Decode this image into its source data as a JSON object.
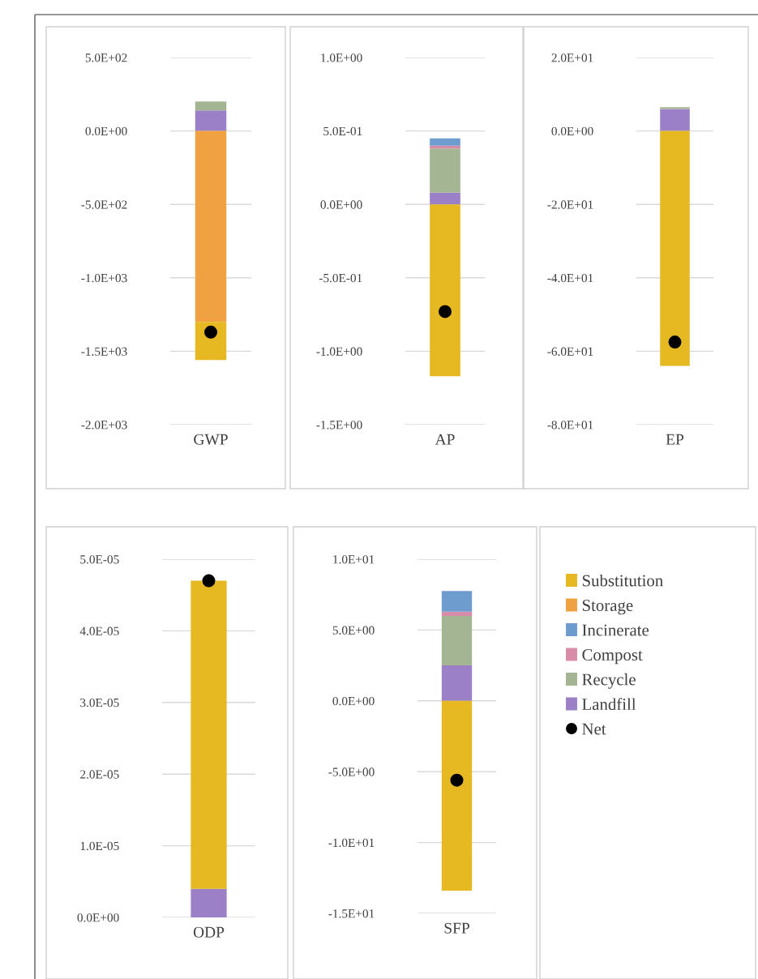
{
  "chart_data": [
    {
      "type": "bar",
      "stacked": true,
      "categories": [
        "GWP"
      ],
      "ylim": [
        -2000,
        500
      ],
      "yticks": [
        {
          "value": 500,
          "label": "5.0E+02"
        },
        {
          "value": 0,
          "label": "0.0E+00"
        },
        {
          "value": -500,
          "label": "-5.0E+02"
        },
        {
          "value": -1000,
          "label": "-1.0E+03"
        },
        {
          "value": -1500,
          "label": "-1.5E+03"
        },
        {
          "value": -2000,
          "label": "-2.0E+03"
        }
      ],
      "grid": "y",
      "series": [
        {
          "color": "#9b80c8",
          "values": [
            140
          ]
        },
        {
          "color": "#a3b593",
          "values": [
            60
          ]
        },
        {
          "color": "#f0a141",
          "values": [
            -1300
          ]
        },
        {
          "color": "#e6b922",
          "values": [
            -260
          ]
        },
        {
          "type": "scatter",
          "marker": "circle",
          "color": "#000000",
          "values": [
            -1370
          ]
        }
      ]
    },
    {
      "type": "bar",
      "stacked": true,
      "categories": [
        "AP"
      ],
      "ylim": [
        -1.5,
        1.0
      ],
      "yticks": [
        {
          "value": 1.0,
          "label": "1.0E+00"
        },
        {
          "value": 0.5,
          "label": "5.0E-01"
        },
        {
          "value": 0,
          "label": "0.0E+00"
        },
        {
          "value": -0.5,
          "label": "-5.0E-01"
        },
        {
          "value": -1.0,
          "label": "-1.0E+00"
        },
        {
          "value": -1.5,
          "label": "-1.5E+00"
        }
      ],
      "grid": "y",
      "series": [
        {
          "color": "#9b80c8",
          "values": [
            0.08
          ]
        },
        {
          "color": "#a3b593",
          "values": [
            0.3
          ]
        },
        {
          "color": "#d98ca8",
          "values": [
            0.02
          ]
        },
        {
          "color": "#6f9ccf",
          "values": [
            0.05
          ]
        },
        {
          "color": "#e6b922",
          "values": [
            -1.17
          ]
        },
        {
          "type": "scatter",
          "marker": "circle",
          "color": "#000000",
          "values": [
            -0.73
          ]
        }
      ]
    },
    {
      "type": "bar",
      "stacked": true,
      "categories": [
        "EP"
      ],
      "ylim": [
        -80,
        20
      ],
      "yticks": [
        {
          "value": 20,
          "label": "2.0E+01"
        },
        {
          "value": 0,
          "label": "0.0E+00"
        },
        {
          "value": -20,
          "label": "-2.0E+01"
        },
        {
          "value": -40,
          "label": "-4.0E+01"
        },
        {
          "value": -60,
          "label": "-6.0E+01"
        },
        {
          "value": -80,
          "label": "-8.0E+01"
        }
      ],
      "grid": "y",
      "series": [
        {
          "color": "#9b80c8",
          "values": [
            6
          ]
        },
        {
          "color": "#a3b593",
          "values": [
            0.5
          ]
        },
        {
          "color": "#e6b922",
          "values": [
            -64
          ]
        },
        {
          "type": "scatter",
          "marker": "circle",
          "color": "#000000",
          "values": [
            -57.5
          ]
        }
      ]
    },
    {
      "type": "bar",
      "stacked": true,
      "categories": [
        "ODP"
      ],
      "ylim": [
        0,
        5e-05
      ],
      "yticks": [
        {
          "value": 5e-05,
          "label": "5.0E-05"
        },
        {
          "value": 4e-05,
          "label": "4.0E-05"
        },
        {
          "value": 3e-05,
          "label": "3.0E-05"
        },
        {
          "value": 2e-05,
          "label": "2.0E-05"
        },
        {
          "value": 1e-05,
          "label": "1.0E-05"
        },
        {
          "value": 0,
          "label": "0.0E+00"
        }
      ],
      "grid": "y",
      "series": [
        {
          "color": "#9b80c8",
          "values": [
            4e-06
          ]
        },
        {
          "color": "#e6b922",
          "values": [
            4.3e-05
          ]
        },
        {
          "type": "scatter",
          "marker": "circle",
          "color": "#000000",
          "values": [
            4.7e-05
          ]
        }
      ]
    },
    {
      "type": "bar",
      "stacked": true,
      "categories": [
        "SFP"
      ],
      "ylim": [
        -15,
        10
      ],
      "yticks": [
        {
          "value": 10,
          "label": "1.0E+01"
        },
        {
          "value": 5,
          "label": "5.0E+00"
        },
        {
          "value": 0,
          "label": "0.0E+00"
        },
        {
          "value": -5,
          "label": "-5.0E+00"
        },
        {
          "value": -10,
          "label": "-1.0E+01"
        },
        {
          "value": -15,
          "label": "-1.5E+01"
        }
      ],
      "grid": "y",
      "legend": "right",
      "series": [
        {
          "name": "Landfill",
          "color": "#9b80c8",
          "values": [
            2.5
          ]
        },
        {
          "name": "Recycle",
          "color": "#a3b593",
          "values": [
            3.5
          ]
        },
        {
          "name": "Compost",
          "color": "#d98ca8",
          "values": [
            0.3
          ]
        },
        {
          "name": "Incinerate",
          "color": "#6f9ccf",
          "values": [
            1.46
          ]
        },
        {
          "name": "Storage",
          "color": "#f0a141",
          "values": [
            null
          ]
        },
        {
          "name": "Substitution",
          "color": "#e6b922",
          "values": [
            -13.4
          ]
        },
        {
          "name": "Net",
          "type": "scatter",
          "marker": "circle",
          "color": "#000000",
          "values": [
            -5.6
          ]
        }
      ]
    }
  ]
}
